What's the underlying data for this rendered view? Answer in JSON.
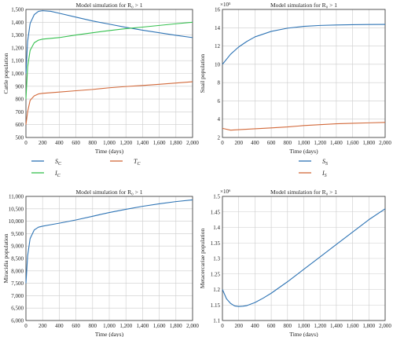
{
  "colors": {
    "blue": "#2e74b5",
    "green": "#35c04f",
    "orange": "#d2693a",
    "grid": "#cccccc",
    "frame": "#333333"
  },
  "chart_data": [
    {
      "type": "line",
      "title": "Model simulation for R₀ > 1",
      "xlabel": "Time (days)",
      "ylabel": "Cattle population",
      "xlim": [
        0,
        2000
      ],
      "ylim": [
        500,
        1500
      ],
      "grid": true,
      "xticks": [
        "0",
        "200",
        "400",
        "600",
        "800",
        "1,000",
        "1,200",
        "1,400",
        "1,600",
        "1,800",
        "2,000"
      ],
      "yticks": [
        "500",
        "600",
        "700",
        "800",
        "900",
        "1,000",
        "1,100",
        "1,200",
        "1,300",
        "1,400",
        "1,500"
      ],
      "legend_position": "bottom",
      "series": [
        {
          "name": "S_C",
          "color": "#2e74b5",
          "x": [
            0,
            20,
            50,
            100,
            150,
            200,
            300,
            400,
            600,
            800,
            1000,
            1200,
            1400,
            1600,
            1800,
            2000
          ],
          "values": [
            1000,
            1250,
            1390,
            1460,
            1485,
            1490,
            1485,
            1470,
            1440,
            1410,
            1385,
            1360,
            1338,
            1318,
            1298,
            1280
          ]
        },
        {
          "name": "I_C",
          "color": "#35c04f",
          "x": [
            0,
            20,
            50,
            100,
            150,
            200,
            400,
            600,
            800,
            1000,
            1200,
            1400,
            1600,
            1800,
            2000
          ],
          "values": [
            800,
            1050,
            1180,
            1240,
            1260,
            1268,
            1280,
            1300,
            1318,
            1335,
            1350,
            1362,
            1375,
            1388,
            1400
          ]
        },
        {
          "name": "T_C",
          "color": "#d2693a",
          "x": [
            0,
            20,
            50,
            100,
            150,
            200,
            400,
            600,
            800,
            1000,
            1200,
            1400,
            1600,
            1800,
            2000
          ],
          "values": [
            600,
            700,
            790,
            825,
            840,
            845,
            855,
            865,
            875,
            888,
            898,
            906,
            915,
            925,
            935
          ]
        }
      ]
    },
    {
      "type": "line",
      "title": "Model simulation for R₀ > 1",
      "xlabel": "Time (days)",
      "ylabel": "Snail population",
      "scale_label": "×10⁵",
      "xlim": [
        0,
        2000
      ],
      "ylim": [
        2,
        16
      ],
      "grid": true,
      "xticks": [
        "0",
        "200",
        "400",
        "600",
        "800",
        "1,000",
        "1,200",
        "1,400",
        "1,600",
        "1,800",
        "2,000"
      ],
      "yticks": [
        "2",
        "4",
        "6",
        "8",
        "10",
        "12",
        "14",
        "16"
      ],
      "legend_position": "bottom",
      "series": [
        {
          "name": "S_S",
          "color": "#2e74b5",
          "x": [
            0,
            100,
            200,
            300,
            400,
            600,
            800,
            1000,
            1200,
            1400,
            1600,
            1800,
            2000
          ],
          "values": [
            10,
            11.1,
            11.9,
            12.5,
            13.0,
            13.6,
            13.95,
            14.15,
            14.25,
            14.3,
            14.33,
            14.35,
            14.36
          ]
        },
        {
          "name": "I_S",
          "color": "#d2693a",
          "x": [
            0,
            100,
            200,
            400,
            600,
            800,
            1000,
            1200,
            1400,
            1600,
            1800,
            2000
          ],
          "values": [
            3.0,
            2.8,
            2.85,
            2.95,
            3.05,
            3.15,
            3.3,
            3.4,
            3.5,
            3.55,
            3.6,
            3.65
          ]
        }
      ]
    },
    {
      "type": "line",
      "title": "Model simulation for R₀ > 1",
      "xlabel": "Time (days)",
      "ylabel": "Miracidia population",
      "xlim": [
        0,
        2000
      ],
      "ylim": [
        6000,
        11000
      ],
      "grid": true,
      "xticks": [
        "0",
        "200",
        "400",
        "600",
        "800",
        "1,000",
        "1,200",
        "1,400",
        "1,600",
        "1,800",
        "2,000"
      ],
      "yticks": [
        "6,000",
        "6,500",
        "7,000",
        "7,500",
        "8,000",
        "8,500",
        "9,000",
        "9,500",
        "10,000",
        "10,500",
        "11,000"
      ],
      "series": [
        {
          "color": "#2e74b5",
          "x": [
            0,
            20,
            50,
            100,
            150,
            200,
            300,
            400,
            600,
            800,
            1000,
            1200,
            1400,
            1600,
            1800,
            2000
          ],
          "values": [
            7500,
            8600,
            9300,
            9650,
            9760,
            9800,
            9860,
            9920,
            10050,
            10200,
            10350,
            10480,
            10600,
            10700,
            10790,
            10860
          ]
        }
      ]
    },
    {
      "type": "line",
      "title": "Model simulation for R₀ > 1",
      "xlabel": "Time (days)",
      "ylabel": "Metacercariae population",
      "scale_label": "×10⁶",
      "xlim": [
        0,
        2000
      ],
      "ylim": [
        1.1,
        1.5
      ],
      "grid": true,
      "xticks": [
        "0",
        "200",
        "400",
        "600",
        "800",
        "1,000",
        "1,200",
        "1,400",
        "1,600",
        "1,800",
        "2,000"
      ],
      "yticks": [
        "1.1",
        "1.15",
        "1.2",
        "1.25",
        "1.3",
        "1.35",
        "1.4",
        "1.45",
        "1.5"
      ],
      "series": [
        {
          "color": "#2e74b5",
          "x": [
            0,
            50,
            100,
            150,
            200,
            250,
            300,
            400,
            500,
            600,
            800,
            1000,
            1200,
            1400,
            1600,
            1800,
            2000
          ],
          "values": [
            1.2,
            1.17,
            1.155,
            1.147,
            1.145,
            1.146,
            1.148,
            1.158,
            1.172,
            1.188,
            1.225,
            1.265,
            1.305,
            1.345,
            1.385,
            1.425,
            1.46
          ]
        }
      ]
    }
  ]
}
